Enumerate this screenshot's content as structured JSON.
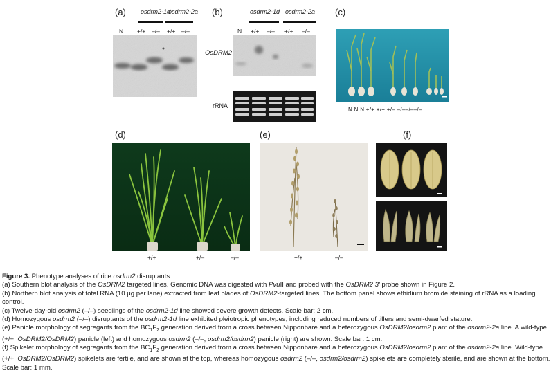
{
  "panel_a": {
    "label": "(a)",
    "line1": "osdrm2-1d",
    "line2": "osdrm2-2a",
    "lanes": [
      "N",
      "+/+",
      "–/–",
      "+/+",
      "–/–"
    ]
  },
  "panel_b": {
    "label": "(b)",
    "line1": "osdrm2-1d",
    "line2": "osdrm2-2a",
    "lanes": [
      "N",
      "+/+",
      "–/–",
      "+/+",
      "–/–"
    ],
    "probe_label": "OsDRM2",
    "loading_label": "rRNA"
  },
  "panel_c": {
    "label": "(c)",
    "seedling_labels": "N  N  N   +/+  +/+  +/–  –/––/––/–"
  },
  "panel_d": {
    "label": "(d)",
    "genotypes": [
      "+/+",
      "+/–",
      "–/–"
    ]
  },
  "panel_e": {
    "label": "(e)",
    "genotypes": [
      "+/+",
      "–/–"
    ]
  },
  "panel_f": {
    "label": "(f)"
  },
  "caption": {
    "title_prefix": "Figure 3.",
    "title_text": " Phenotype analyses of rice ",
    "title_gene": "osdrm2",
    "title_suffix": " disruptants.",
    "a_1": "(a) Southern blot analysis of the ",
    "a_2": "OsDRM2",
    "a_3": " targeted lines. Genomic DNA was digested with ",
    "a_4": "Pvu",
    "a_5": "II and probed with the ",
    "a_6": "OsDRM2 3′",
    "a_7": " probe shown in Figure 2.",
    "b_1": "(b) Northern blot analysis of total RNA (10 μg per lane) extracted from leaf blades of ",
    "b_2": "OsDRM2",
    "b_3": "-targeted lines. The bottom panel shows ethidium bromide staining of rRNA as a loading control.",
    "c_1": "(c) Twelve-day-old ",
    "c_2": "osdrm2",
    "c_3": " (–/–) seedlings of the ",
    "c_4": "osdrm2-1d",
    "c_5": " line showed severe growth defects. Scale bar: 2 cm.",
    "d_1": "(d) Homozygous ",
    "d_2": "osdrm2",
    "d_3": " (–/–) disruptants of the ",
    "d_4": "osdrm2-1d",
    "d_5": " line exhibited pleiotropic phenotypes, including reduced numbers of tillers and semi-dwarfed stature.",
    "e_1": "(e) Panicle morphology of segregants from the BC",
    "e_sub1": "1",
    "e_2": "F",
    "e_sub2": "2",
    "e_3": " generation derived from a cross between Nipponbare and a heterozygous ",
    "e_4": "OsDRM2/osdrm2",
    "e_5": " plant of the ",
    "e_6": "osdrm2-2a",
    "e_7": " line. A wild-type (+/+, ",
    "e_8": "OsDRM2/OsDRM2",
    "e_9": ") panicle (left) and homozygous ",
    "e_10": "osdrm2",
    "e_11": " (–/–, ",
    "e_12": "osdrm2/osdrm2",
    "e_13": ") panicle (right) are shown. Scale bar: 1 cm.",
    "f_1": "(f) Spikelet morphology of segregants from the BC",
    "f_sub1": "1",
    "f_2": "F",
    "f_sub2": "2",
    "f_3": " generation derived from a cross between Nipponbare and a heterozygous ",
    "f_4": "OsDRM2/osdrm2",
    "f_5": " plant of the ",
    "f_6": "osdrm2-2a",
    "f_7": " line. Wild-type (+/+, ",
    "f_8": "OsDRM2/OsDRM2",
    "f_9": ") spikelets are fertile, and are shown at the top, whereas homozygous ",
    "f_10": "osdrm2",
    "f_11": " (–/–, ",
    "f_12": "osdrm2/osdrm2",
    "f_13": ") spikelets are completely sterile, and are shown at the bottom. Scale bar: 1 mm."
  }
}
